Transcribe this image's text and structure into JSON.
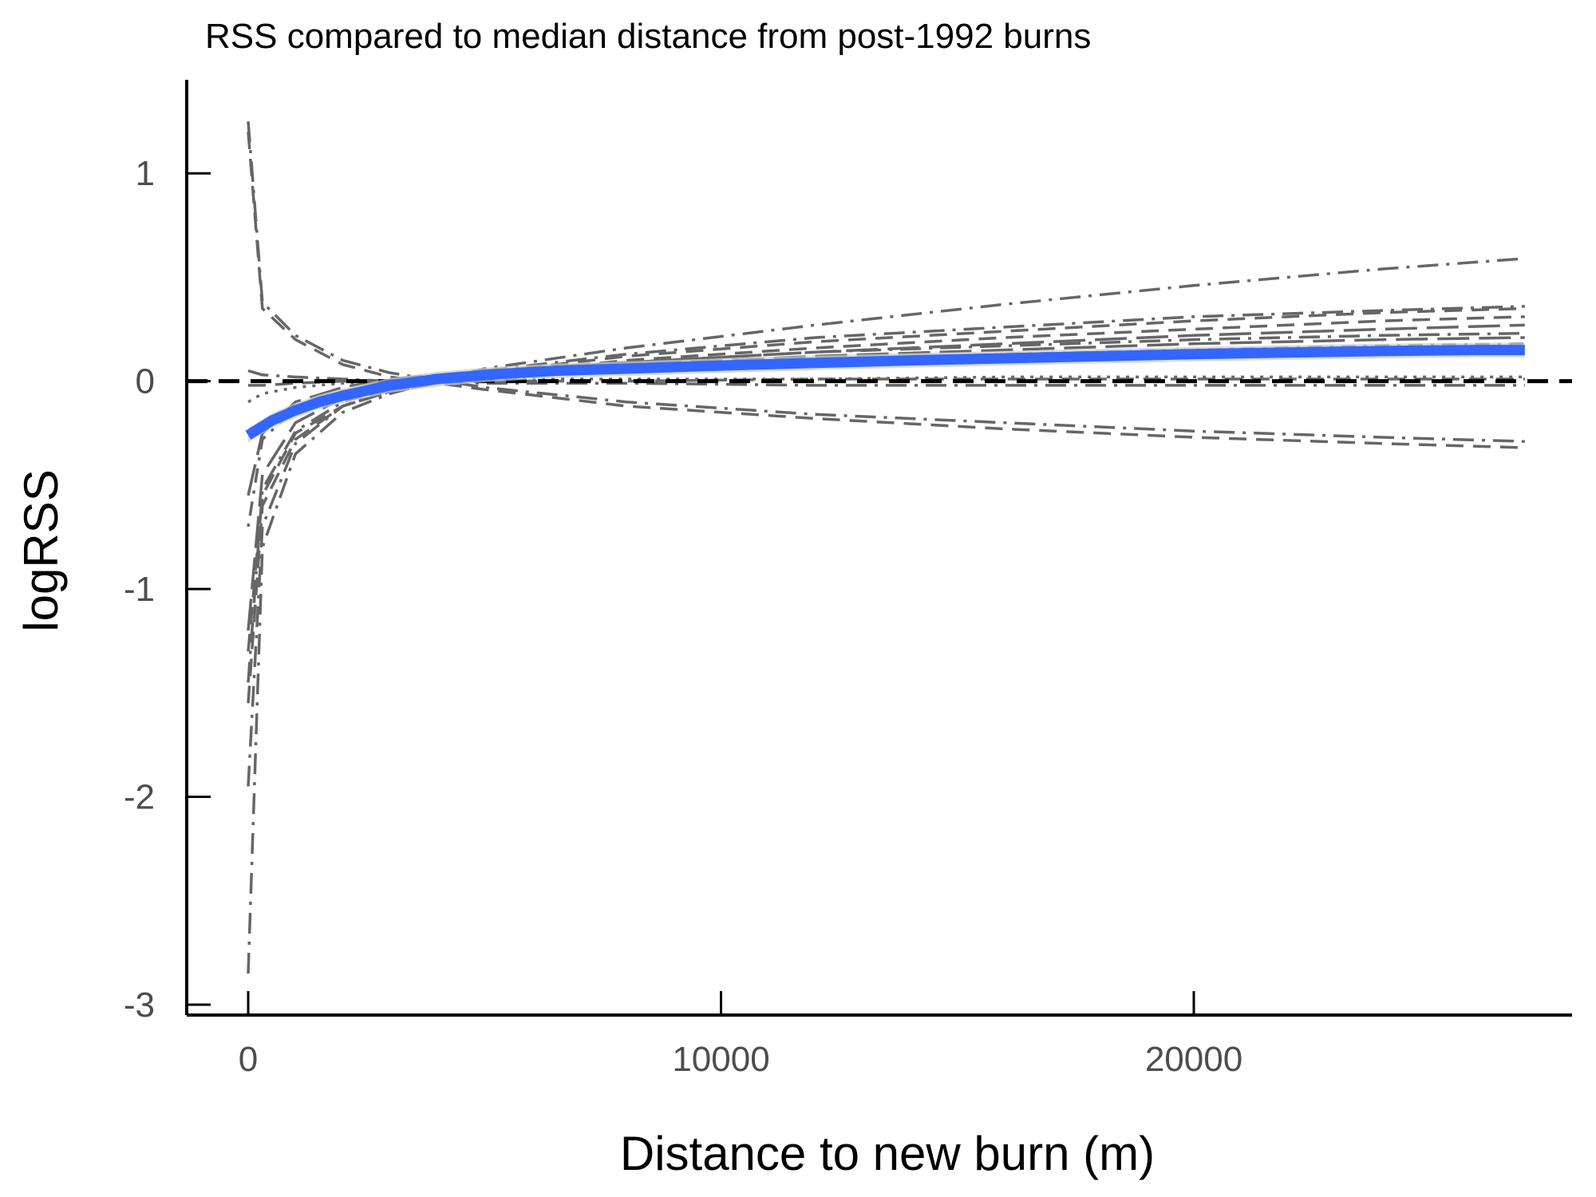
{
  "chart_data": {
    "type": "line",
    "title": "RSS compared to median distance from post-1992 burns",
    "xlabel": "Distance to new burn (m)",
    "ylabel": "logRSS",
    "xlim": [
      -1300,
      28000
    ],
    "ylim": [
      -3.05,
      1.45
    ],
    "x_ticks": [
      0,
      10000,
      20000
    ],
    "x_tick_labels": [
      "0",
      "10000",
      "20000"
    ],
    "y_ticks": [
      -3,
      -2,
      -1,
      0,
      1
    ],
    "y_tick_labels": [
      "-3",
      "-2",
      "-1",
      "0",
      "1"
    ],
    "grid": false,
    "legend": "none",
    "reference_line": {
      "y": 0,
      "style": "dashed",
      "color": "#000000"
    },
    "colors": {
      "individual": "#666666",
      "mean": "#3366ff",
      "ribbon": "#cccccc",
      "axis": "#000000"
    },
    "individual_series": [
      {
        "dash": "dashdot",
        "x": [
          0,
          300,
          1000,
          2000,
          3000,
          5000,
          8000,
          12000,
          16000,
          20000,
          24000,
          27000
        ],
        "y": [
          1.25,
          0.38,
          0.22,
          0.1,
          0.04,
          -0.03,
          -0.1,
          -0.16,
          -0.2,
          -0.24,
          -0.27,
          -0.29
        ]
      },
      {
        "dash": "dashed",
        "x": [
          0,
          300,
          1000,
          2000,
          3000,
          5000,
          8000,
          12000,
          16000,
          20000,
          24000,
          27000
        ],
        "y": [
          1.2,
          0.35,
          0.2,
          0.08,
          0.02,
          -0.04,
          -0.12,
          -0.18,
          -0.23,
          -0.27,
          -0.3,
          -0.32
        ]
      },
      {
        "dash": "dashed",
        "x": [
          0,
          300,
          1000,
          2000,
          3000,
          5000,
          8000,
          12000,
          16000,
          20000,
          24000,
          27000
        ],
        "y": [
          -1.3,
          -0.55,
          -0.25,
          -0.12,
          -0.05,
          0.03,
          0.1,
          0.16,
          0.21,
          0.25,
          0.29,
          0.31
        ]
      },
      {
        "dash": "dashdot",
        "x": [
          0,
          300,
          1000,
          2000,
          3000,
          5000,
          8000,
          12000,
          16000,
          20000,
          24000,
          27000
        ],
        "y": [
          -2.85,
          -0.8,
          -0.35,
          -0.15,
          -0.06,
          0.06,
          0.16,
          0.27,
          0.37,
          0.46,
          0.54,
          0.59
        ]
      },
      {
        "dash": "dashdot",
        "x": [
          0,
          300,
          1000,
          2000,
          3000,
          5000,
          8000,
          12000,
          16000,
          20000,
          24000,
          27000
        ],
        "y": [
          -1.95,
          -0.7,
          -0.3,
          -0.12,
          -0.04,
          0.05,
          0.13,
          0.21,
          0.26,
          0.31,
          0.34,
          0.36
        ]
      },
      {
        "dash": "dashed",
        "x": [
          0,
          300,
          1000,
          2000,
          3000,
          5000,
          8000,
          12000,
          16000,
          20000,
          24000,
          27000
        ],
        "y": [
          -1.55,
          -0.6,
          -0.28,
          -0.12,
          -0.05,
          0.04,
          0.12,
          0.19,
          0.24,
          0.29,
          0.33,
          0.35
        ]
      },
      {
        "dash": "dashdot",
        "x": [
          0,
          300,
          1000,
          2000,
          3000,
          5000,
          8000,
          12000,
          16000,
          20000,
          24000,
          27000
        ],
        "y": [
          -1.45,
          -0.52,
          -0.24,
          -0.1,
          -0.03,
          0.04,
          0.09,
          0.14,
          0.17,
          0.2,
          0.22,
          0.23
        ]
      },
      {
        "dash": "longdash",
        "x": [
          0,
          300,
          1000,
          2000,
          3000,
          5000,
          8000,
          12000,
          16000,
          20000,
          24000,
          27000
        ],
        "y": [
          -1.2,
          -0.45,
          -0.2,
          -0.08,
          -0.02,
          0.04,
          0.08,
          0.12,
          0.15,
          0.18,
          0.2,
          0.21
        ]
      },
      {
        "dash": "dotdash",
        "x": [
          0,
          300,
          1000,
          2000,
          3000,
          5000,
          8000,
          12000,
          16000,
          20000,
          24000,
          27000
        ],
        "y": [
          -0.7,
          -0.28,
          -0.13,
          -0.05,
          -0.01,
          0.03,
          0.07,
          0.1,
          0.13,
          0.15,
          0.17,
          0.18
        ]
      },
      {
        "dash": "dotted",
        "x": [
          0,
          300,
          1000,
          2000,
          3000,
          5000,
          8000,
          12000,
          16000,
          20000,
          24000,
          27000
        ],
        "y": [
          -0.1,
          -0.06,
          -0.03,
          -0.01,
          0.0,
          0.01,
          0.01,
          0.01,
          0.02,
          0.02,
          0.02,
          0.02
        ]
      },
      {
        "dash": "dashed",
        "x": [
          0,
          300,
          1000,
          2000,
          3000,
          5000,
          8000,
          12000,
          16000,
          20000,
          24000,
          27000
        ],
        "y": [
          -0.02,
          -0.02,
          -0.01,
          0.0,
          0.0,
          0.0,
          0.0,
          0.01,
          0.01,
          0.01,
          0.01,
          0.01
        ]
      },
      {
        "dash": "dashdot",
        "x": [
          0,
          300,
          1000,
          2000,
          3000,
          5000,
          8000,
          12000,
          16000,
          20000,
          24000,
          27000
        ],
        "y": [
          0.05,
          0.03,
          0.02,
          0.01,
          0.0,
          -0.01,
          -0.01,
          -0.02,
          -0.02,
          -0.02,
          -0.02,
          -0.02
        ]
      },
      {
        "dash": "longdash",
        "x": [
          0,
          300,
          1000,
          2000,
          3000,
          5000,
          8000,
          12000,
          16000,
          20000,
          24000,
          27000
        ],
        "y": [
          -0.55,
          -0.25,
          -0.1,
          -0.03,
          0.01,
          0.05,
          0.09,
          0.14,
          0.18,
          0.22,
          0.25,
          0.27
        ]
      }
    ],
    "mean_series": {
      "x": [
        0,
        500,
        1000,
        1500,
        2000,
        3000,
        4000,
        5000,
        6500,
        8000,
        10000,
        12000,
        14000,
        16000,
        18000,
        20000,
        22000,
        24000,
        26000,
        27000
      ],
      "y": [
        -0.26,
        -0.19,
        -0.14,
        -0.1,
        -0.07,
        -0.02,
        0.01,
        0.03,
        0.05,
        0.06,
        0.075,
        0.088,
        0.1,
        0.11,
        0.12,
        0.13,
        0.138,
        0.145,
        0.15,
        0.15
      ]
    }
  }
}
